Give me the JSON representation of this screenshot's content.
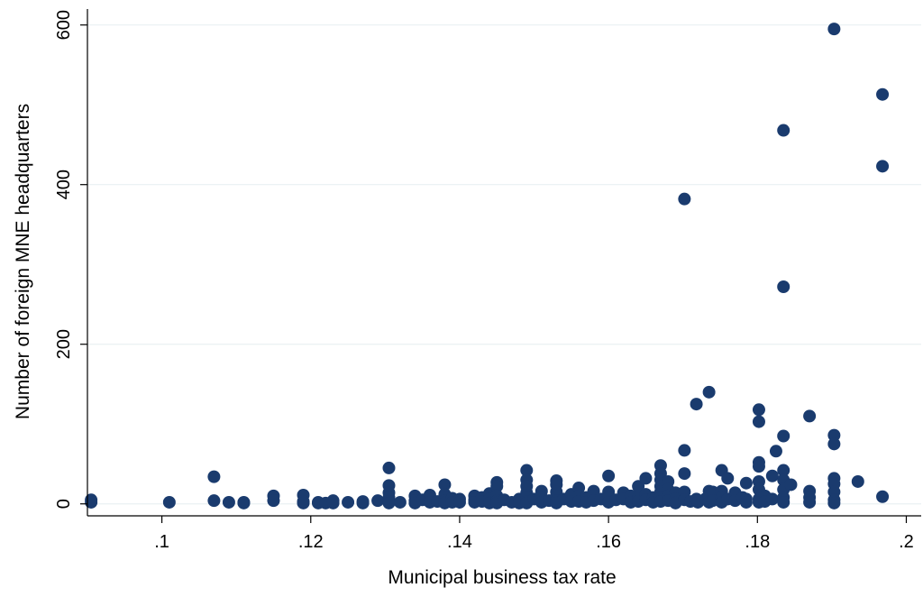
{
  "chart_data": {
    "type": "scatter",
    "title": "",
    "xlabel": "Municipal business tax rate",
    "ylabel": "Number of foreign MNE headquarters",
    "xlim": [
      0.09,
      0.202
    ],
    "ylim": [
      -15,
      620
    ],
    "xticks": [
      0.1,
      0.12,
      0.14,
      0.16,
      0.18,
      0.2
    ],
    "xtick_labels": [
      ".1",
      ".12",
      ".14",
      ".16",
      ".18",
      ".2"
    ],
    "yticks": [
      0,
      200,
      400,
      600
    ],
    "ytick_labels": [
      "0",
      "200",
      "400",
      "600"
    ],
    "grid": true,
    "legend": "none",
    "marker_color": "#1a3b6e",
    "points": [
      [
        0.0905,
        5
      ],
      [
        0.0905,
        2
      ],
      [
        0.101,
        2
      ],
      [
        0.107,
        34
      ],
      [
        0.107,
        4
      ],
      [
        0.109,
        2
      ],
      [
        0.111,
        2
      ],
      [
        0.111,
        1
      ],
      [
        0.115,
        10
      ],
      [
        0.115,
        4
      ],
      [
        0.119,
        11
      ],
      [
        0.119,
        3
      ],
      [
        0.119,
        1
      ],
      [
        0.121,
        2
      ],
      [
        0.121,
        1
      ],
      [
        0.122,
        1
      ],
      [
        0.123,
        4
      ],
      [
        0.123,
        1
      ],
      [
        0.125,
        2
      ],
      [
        0.127,
        3
      ],
      [
        0.127,
        1
      ],
      [
        0.129,
        4
      ],
      [
        0.1305,
        45
      ],
      [
        0.1305,
        23
      ],
      [
        0.1305,
        14
      ],
      [
        0.1305,
        8
      ],
      [
        0.1305,
        3
      ],
      [
        0.1305,
        1
      ],
      [
        0.132,
        2
      ],
      [
        0.134,
        10
      ],
      [
        0.134,
        4
      ],
      [
        0.134,
        1
      ],
      [
        0.135,
        5
      ],
      [
        0.136,
        11
      ],
      [
        0.136,
        6
      ],
      [
        0.136,
        2
      ],
      [
        0.137,
        3
      ],
      [
        0.138,
        24
      ],
      [
        0.138,
        12
      ],
      [
        0.138,
        8
      ],
      [
        0.138,
        4
      ],
      [
        0.138,
        1
      ],
      [
        0.139,
        7
      ],
      [
        0.139,
        2
      ],
      [
        0.14,
        6
      ],
      [
        0.14,
        2
      ],
      [
        0.142,
        10
      ],
      [
        0.142,
        5
      ],
      [
        0.142,
        2
      ],
      [
        0.143,
        8
      ],
      [
        0.143,
        3
      ],
      [
        0.144,
        13
      ],
      [
        0.144,
        6
      ],
      [
        0.144,
        1
      ],
      [
        0.145,
        27
      ],
      [
        0.145,
        22
      ],
      [
        0.145,
        10
      ],
      [
        0.145,
        4
      ],
      [
        0.145,
        1
      ],
      [
        0.146,
        5
      ],
      [
        0.147,
        2
      ],
      [
        0.148,
        6
      ],
      [
        0.148,
        1
      ],
      [
        0.149,
        42
      ],
      [
        0.149,
        30
      ],
      [
        0.149,
        22
      ],
      [
        0.149,
        14
      ],
      [
        0.149,
        8
      ],
      [
        0.149,
        3
      ],
      [
        0.149,
        1
      ],
      [
        0.15,
        6
      ],
      [
        0.151,
        16
      ],
      [
        0.151,
        8
      ],
      [
        0.151,
        2
      ],
      [
        0.152,
        4
      ],
      [
        0.153,
        29
      ],
      [
        0.153,
        24
      ],
      [
        0.153,
        15
      ],
      [
        0.153,
        9
      ],
      [
        0.153,
        4
      ],
      [
        0.153,
        1
      ],
      [
        0.154,
        6
      ],
      [
        0.155,
        12
      ],
      [
        0.155,
        3
      ],
      [
        0.156,
        20
      ],
      [
        0.156,
        10
      ],
      [
        0.156,
        3
      ],
      [
        0.157,
        8
      ],
      [
        0.157,
        2
      ],
      [
        0.158,
        16
      ],
      [
        0.158,
        10
      ],
      [
        0.158,
        4
      ],
      [
        0.159,
        6
      ],
      [
        0.16,
        35
      ],
      [
        0.16,
        15
      ],
      [
        0.16,
        8
      ],
      [
        0.16,
        2
      ],
      [
        0.161,
        5
      ],
      [
        0.162,
        14
      ],
      [
        0.162,
        6
      ],
      [
        0.163,
        10
      ],
      [
        0.163,
        2
      ],
      [
        0.164,
        22
      ],
      [
        0.164,
        8
      ],
      [
        0.164,
        3
      ],
      [
        0.165,
        32
      ],
      [
        0.165,
        12
      ],
      [
        0.165,
        5
      ],
      [
        0.166,
        8
      ],
      [
        0.166,
        2
      ],
      [
        0.167,
        48
      ],
      [
        0.167,
        38
      ],
      [
        0.167,
        30
      ],
      [
        0.167,
        22
      ],
      [
        0.167,
        15
      ],
      [
        0.167,
        8
      ],
      [
        0.167,
        3
      ],
      [
        0.168,
        28
      ],
      [
        0.168,
        18
      ],
      [
        0.168,
        10
      ],
      [
        0.168,
        4
      ],
      [
        0.169,
        14
      ],
      [
        0.169,
        6
      ],
      [
        0.169,
        1
      ],
      [
        0.1702,
        382
      ],
      [
        0.1702,
        67
      ],
      [
        0.1702,
        38
      ],
      [
        0.1702,
        15
      ],
      [
        0.1702,
        5
      ],
      [
        0.171,
        3
      ],
      [
        0.1718,
        125
      ],
      [
        0.1718,
        6
      ],
      [
        0.172,
        2
      ],
      [
        0.173,
        6
      ],
      [
        0.1735,
        140
      ],
      [
        0.1735,
        16
      ],
      [
        0.1735,
        10
      ],
      [
        0.1735,
        2
      ],
      [
        0.174,
        15
      ],
      [
        0.174,
        4
      ],
      [
        0.1752,
        42
      ],
      [
        0.1752,
        16
      ],
      [
        0.1752,
        8
      ],
      [
        0.1752,
        2
      ],
      [
        0.176,
        32
      ],
      [
        0.176,
        6
      ],
      [
        0.177,
        14
      ],
      [
        0.177,
        4
      ],
      [
        0.178,
        8
      ],
      [
        0.1785,
        26
      ],
      [
        0.1785,
        6
      ],
      [
        0.1785,
        2
      ],
      [
        0.1802,
        118
      ],
      [
        0.1802,
        103
      ],
      [
        0.1802,
        52
      ],
      [
        0.1802,
        47
      ],
      [
        0.1802,
        28
      ],
      [
        0.1802,
        18
      ],
      [
        0.1802,
        6
      ],
      [
        0.1802,
        2
      ],
      [
        0.181,
        10
      ],
      [
        0.181,
        3
      ],
      [
        0.182,
        35
      ],
      [
        0.182,
        6
      ],
      [
        0.1825,
        66
      ],
      [
        0.1835,
        468
      ],
      [
        0.1835,
        272
      ],
      [
        0.1835,
        85
      ],
      [
        0.1835,
        42
      ],
      [
        0.1835,
        30
      ],
      [
        0.1835,
        18
      ],
      [
        0.1835,
        8
      ],
      [
        0.1835,
        2
      ],
      [
        0.1845,
        24
      ],
      [
        0.187,
        110
      ],
      [
        0.187,
        16
      ],
      [
        0.187,
        8
      ],
      [
        0.187,
        2
      ],
      [
        0.1903,
        595
      ],
      [
        0.1903,
        86
      ],
      [
        0.1903,
        75
      ],
      [
        0.1903,
        32
      ],
      [
        0.1903,
        25
      ],
      [
        0.1903,
        15
      ],
      [
        0.1903,
        5
      ],
      [
        0.1903,
        1
      ],
      [
        0.1935,
        28
      ],
      [
        0.1968,
        513
      ],
      [
        0.1968,
        423
      ],
      [
        0.1968,
        9
      ]
    ]
  }
}
